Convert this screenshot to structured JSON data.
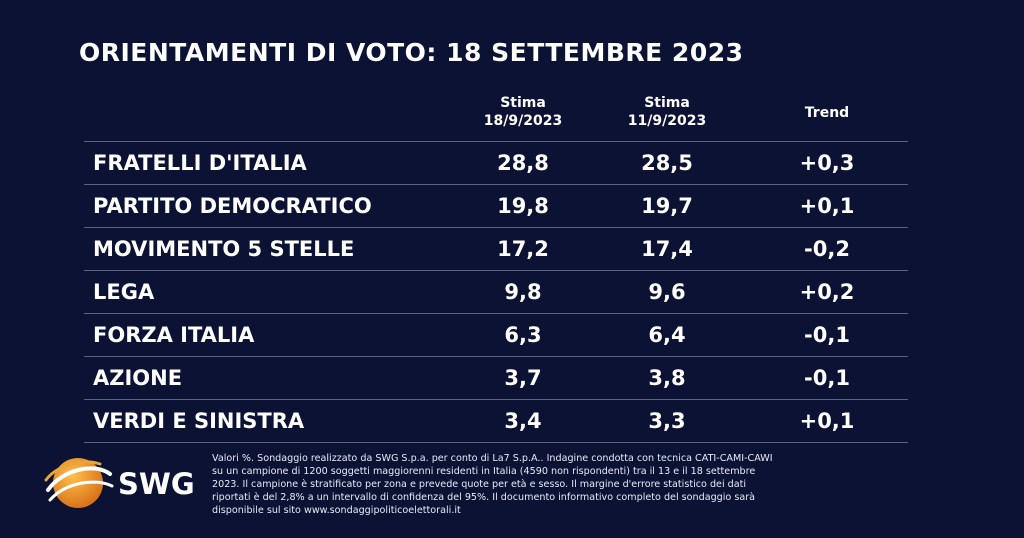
{
  "title": "ORIENTAMENTI DI VOTO: 18 SETTEMBRE 2023",
  "columns": {
    "stima1": [
      "Stima",
      "18/9/2023"
    ],
    "stima2": [
      "Stima",
      "11/9/2023"
    ],
    "trend": "Trend"
  },
  "chart_data": {
    "type": "table",
    "title": "ORIENTAMENTI DI VOTO: 18 SETTEMBRE 2023",
    "columns": [
      "",
      "Stima 18/9/2023",
      "Stima 11/9/2023",
      "Trend"
    ],
    "rows": [
      {
        "party": "FRATELLI D'ITALIA",
        "stima_18": "28,8",
        "stima_11": "28,5",
        "trend": "+0,3"
      },
      {
        "party": "PARTITO DEMOCRATICO",
        "stima_18": "19,8",
        "stima_11": "19,7",
        "trend": "+0,1"
      },
      {
        "party": "MOVIMENTO 5 STELLE",
        "stima_18": "17,2",
        "stima_11": "17,4",
        "trend": "-0,2"
      },
      {
        "party": "LEGA",
        "stima_18": "9,8",
        "stima_11": "9,6",
        "trend": "+0,2"
      },
      {
        "party": "FORZA ITALIA",
        "stima_18": "6,3",
        "stima_11": "6,4",
        "trend": "-0,1"
      },
      {
        "party": "AZIONE",
        "stima_18": "3,7",
        "stima_11": "3,8",
        "trend": "-0,1"
      },
      {
        "party": "VERDI E SINISTRA",
        "stima_18": "3,4",
        "stima_11": "3,3",
        "trend": "+0,1"
      }
    ]
  },
  "footer": {
    "lines": [
      "Valori %. Sondaggio realizzato da SWG S.p.a. per conto di La7 S.p.A.. Indagine condotta con tecnica CATI-CAMI-CAWI",
      "su un campione di 1200 soggetti maggiorenni residenti in Italia (4590 non rispondenti) tra il 13 e il 18 settembre",
      "2023. Il campione è stratificato per zona e prevede quote per età e sesso. Il margine d'errore statistico dei dati",
      "riportati è del 2,8% a un intervallo di confidenza del 95%. Il documento informativo completo del sondaggio sarà",
      "disponibile sul sito www.sondaggipoliticoelettorali.it"
    ]
  },
  "logo": {
    "text": "SWG",
    "colors": {
      "orange": "#f39a1e",
      "dark_orange": "#d9731a"
    }
  }
}
